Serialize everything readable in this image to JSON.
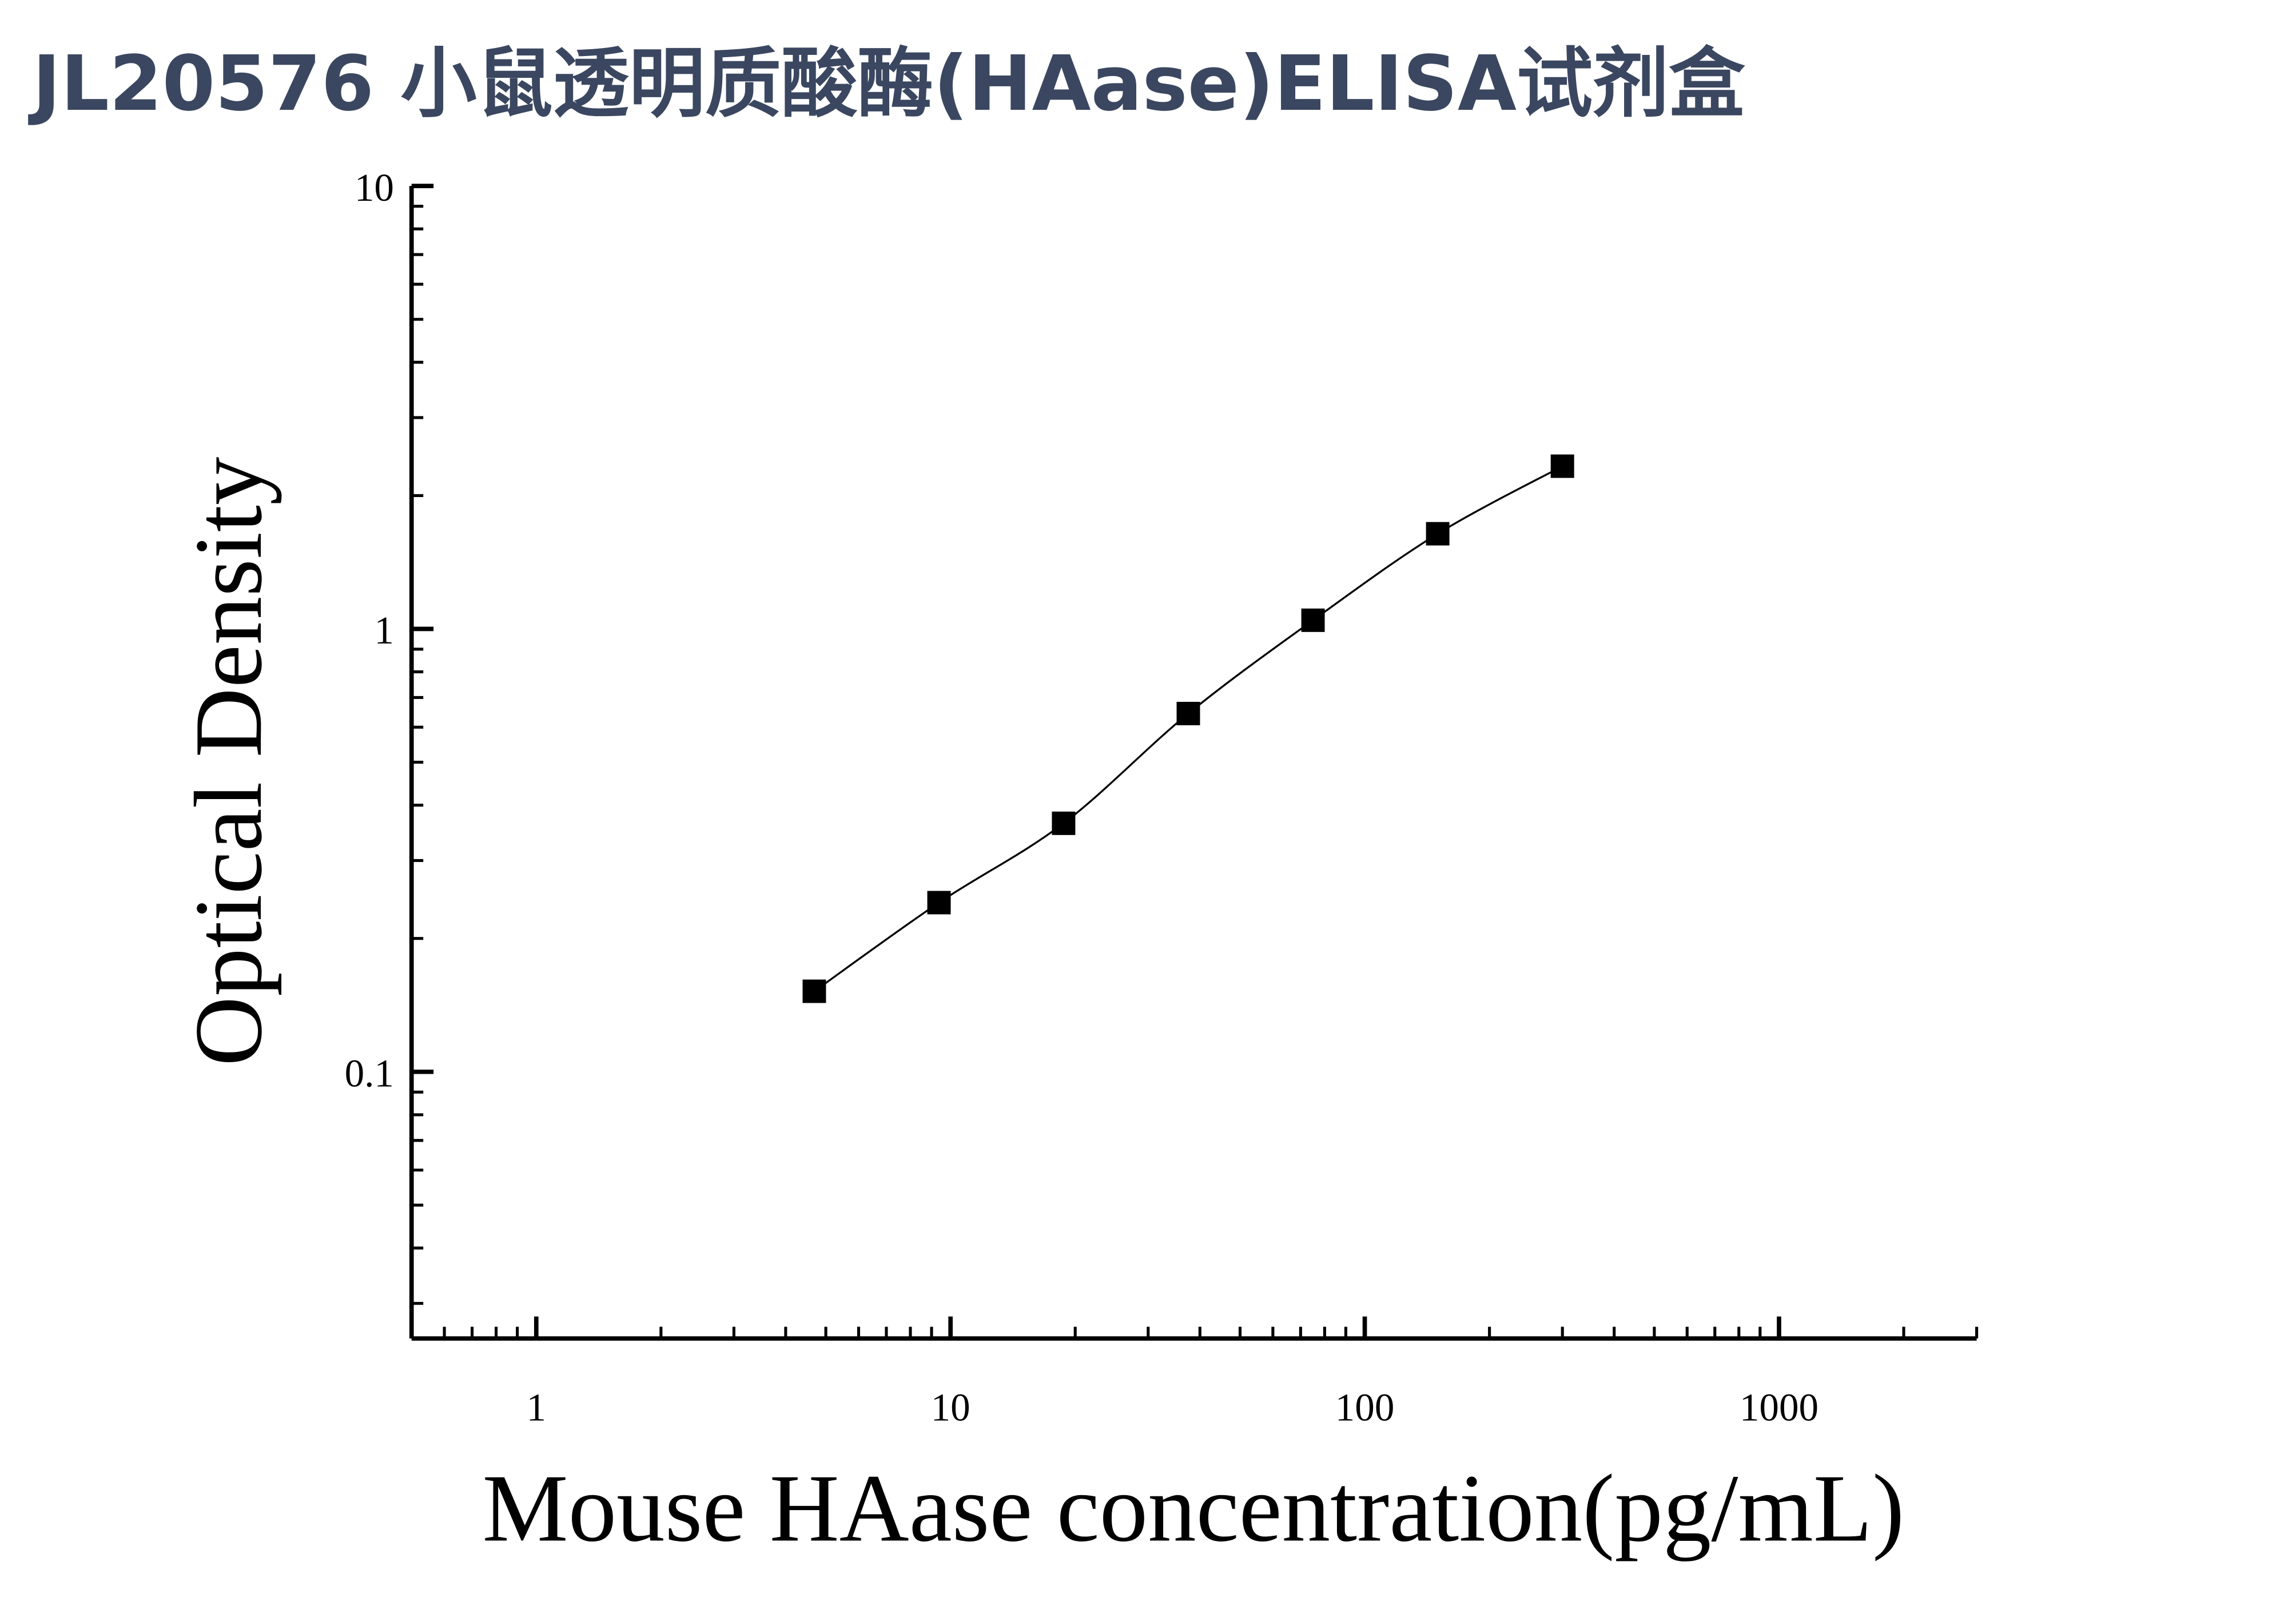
{
  "chart_data": {
    "type": "line",
    "title": "JL20576 小鼠透明质酸酶(HAase)ELISA试剂盒",
    "x_label": "Mouse HAase concentration(pg/mL)",
    "y_label": "Optical Density",
    "x": [
      4.69,
      9.38,
      18.75,
      37.5,
      75,
      150,
      300
    ],
    "values": [
      0.152,
      0.241,
      0.364,
      0.644,
      1.046,
      1.64,
      2.33
    ],
    "color": "#000000",
    "marker": "square",
    "smooth": true,
    "x_log": true,
    "y_log": true,
    "minor_ticks": true,
    "xlim": [
      0.5,
      3000
    ],
    "ylim": [
      0.025,
      10
    ],
    "xticks": [
      1,
      10,
      100,
      1000
    ],
    "yticks": [
      {
        "value": 0.1,
        "label": "0.1"
      },
      1,
      10
    ]
  }
}
